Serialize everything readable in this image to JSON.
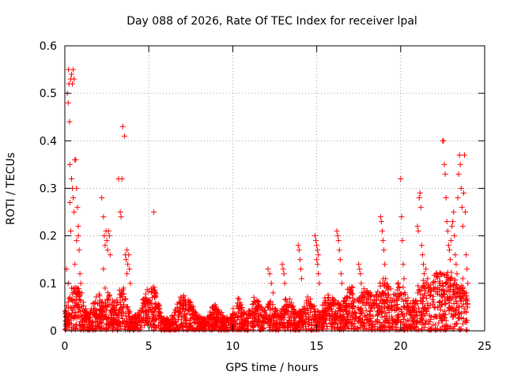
{
  "chart_data": {
    "type": "scatter",
    "title": "Day 088 of 2026, Rate Of TEC Index for receiver lpal",
    "xlabel": "GPS time / hours",
    "ylabel": "ROTI / TECUs",
    "xlim": [
      0,
      25
    ],
    "ylim": [
      0,
      0.6
    ],
    "grid": true,
    "marker": "+",
    "series_color": "#ff0000",
    "xticks": [
      0,
      5,
      10,
      15,
      20,
      25
    ],
    "xtick_labels": [
      "0",
      "5",
      "10",
      "15",
      "20",
      "25"
    ],
    "yticks": [
      0,
      0.1,
      0.2,
      0.3,
      0.4,
      0.5,
      0.6
    ],
    "ytick_labels": [
      "0",
      "0.1",
      "0.2",
      "0.3",
      "0.4",
      "0.5",
      "0.6"
    ],
    "series": [
      {
        "name": "ROTI",
        "points": [
          [
            0.05,
            0.01
          ],
          [
            0.1,
            0.13
          ],
          [
            0.15,
            0.5
          ],
          [
            0.2,
            0.48
          ],
          [
            0.22,
            0.55
          ],
          [
            0.25,
            0.52
          ],
          [
            0.28,
            0.44
          ],
          [
            0.3,
            0.35
          ],
          [
            0.35,
            0.53
          ],
          [
            0.4,
            0.54
          ],
          [
            0.45,
            0.52
          ],
          [
            0.5,
            0.55
          ],
          [
            0.55,
            0.53
          ],
          [
            0.3,
            0.27
          ],
          [
            0.35,
            0.21
          ],
          [
            0.4,
            0.32
          ],
          [
            0.45,
            0.3
          ],
          [
            0.5,
            0.28
          ],
          [
            0.55,
            0.25
          ],
          [
            0.6,
            0.36
          ],
          [
            0.65,
            0.36
          ],
          [
            0.7,
            0.3
          ],
          [
            0.75,
            0.26
          ],
          [
            0.8,
            0.2
          ],
          [
            0.85,
            0.17
          ],
          [
            0.9,
            0.12
          ],
          [
            0.95,
            0.1
          ],
          [
            1.0,
            0.08
          ],
          [
            0.2,
            0.1
          ],
          [
            0.3,
            0.07
          ],
          [
            0.4,
            0.09
          ],
          [
            0.6,
            0.14
          ],
          [
            0.7,
            0.19
          ],
          [
            0.8,
            0.22
          ],
          [
            1.1,
            0.06
          ],
          [
            2.2,
            0.28
          ],
          [
            2.3,
            0.24
          ],
          [
            2.35,
            0.2
          ],
          [
            2.4,
            0.18
          ],
          [
            2.45,
            0.21
          ],
          [
            2.5,
            0.19
          ],
          [
            2.55,
            0.17
          ],
          [
            2.6,
            0.21
          ],
          [
            2.65,
            0.2
          ],
          [
            2.7,
            0.16
          ],
          [
            2.3,
            0.13
          ],
          [
            2.4,
            0.09
          ],
          [
            3.2,
            0.32
          ],
          [
            3.3,
            0.25
          ],
          [
            3.35,
            0.24
          ],
          [
            3.4,
            0.32
          ],
          [
            3.45,
            0.43
          ],
          [
            3.55,
            0.41
          ],
          [
            3.6,
            0.16
          ],
          [
            3.65,
            0.15
          ],
          [
            3.7,
            0.17
          ],
          [
            3.75,
            0.14
          ],
          [
            3.8,
            0.16
          ],
          [
            3.85,
            0.13
          ],
          [
            3.9,
            0.1
          ],
          [
            3.7,
            0.12
          ],
          [
            3.5,
            0.09
          ],
          [
            3.3,
            0.07
          ],
          [
            5.3,
            0.25
          ],
          [
            5.1,
            0.06
          ],
          [
            5.2,
            0.07
          ],
          [
            5.4,
            0.05
          ],
          [
            12.1,
            0.13
          ],
          [
            12.2,
            0.12
          ],
          [
            12.3,
            0.1
          ],
          [
            12.4,
            0.08
          ],
          [
            12.95,
            0.14
          ],
          [
            13.0,
            0.13
          ],
          [
            13.05,
            0.12
          ],
          [
            13.1,
            0.1
          ],
          [
            13.9,
            0.18
          ],
          [
            13.95,
            0.17
          ],
          [
            14.0,
            0.15
          ],
          [
            14.05,
            0.13
          ],
          [
            14.1,
            0.11
          ],
          [
            14.9,
            0.2
          ],
          [
            14.95,
            0.19
          ],
          [
            15.0,
            0.18
          ],
          [
            15.05,
            0.17
          ],
          [
            15.1,
            0.16
          ],
          [
            15.0,
            0.15
          ],
          [
            15.05,
            0.14
          ],
          [
            15.1,
            0.12
          ],
          [
            15.15,
            0.1
          ],
          [
            16.2,
            0.21
          ],
          [
            16.25,
            0.2
          ],
          [
            16.3,
            0.19
          ],
          [
            16.35,
            0.17
          ],
          [
            16.4,
            0.15
          ],
          [
            16.45,
            0.12
          ],
          [
            16.5,
            0.1
          ],
          [
            17.5,
            0.14
          ],
          [
            17.55,
            0.13
          ],
          [
            17.6,
            0.12
          ],
          [
            17.65,
            0.1
          ],
          [
            17.7,
            0.08
          ],
          [
            18.8,
            0.24
          ],
          [
            18.85,
            0.23
          ],
          [
            18.9,
            0.21
          ],
          [
            18.95,
            0.19
          ],
          [
            19.0,
            0.17
          ],
          [
            19.05,
            0.14
          ],
          [
            19.1,
            0.11
          ],
          [
            19.15,
            0.09
          ],
          [
            20.0,
            0.32
          ],
          [
            20.05,
            0.24
          ],
          [
            20.1,
            0.19
          ],
          [
            20.15,
            0.14
          ],
          [
            20.2,
            0.11
          ],
          [
            21.0,
            0.22
          ],
          [
            21.05,
            0.21
          ],
          [
            21.1,
            0.28
          ],
          [
            21.15,
            0.29
          ],
          [
            21.2,
            0.26
          ],
          [
            21.25,
            0.18
          ],
          [
            21.3,
            0.16
          ],
          [
            21.35,
            0.14
          ],
          [
            21.4,
            0.12
          ],
          [
            21.45,
            0.1
          ],
          [
            21.5,
            0.13
          ],
          [
            21.6,
            0.11
          ],
          [
            21.7,
            0.09
          ],
          [
            22.5,
            0.4
          ],
          [
            22.55,
            0.4
          ],
          [
            22.6,
            0.35
          ],
          [
            22.65,
            0.33
          ],
          [
            22.7,
            0.28
          ],
          [
            22.75,
            0.23
          ],
          [
            22.8,
            0.21
          ],
          [
            22.85,
            0.18
          ],
          [
            22.9,
            0.17
          ],
          [
            22.95,
            0.15
          ],
          [
            23.0,
            0.19
          ],
          [
            23.05,
            0.22
          ],
          [
            23.1,
            0.23
          ],
          [
            23.15,
            0.25
          ],
          [
            23.2,
            0.2
          ],
          [
            23.25,
            0.16
          ],
          [
            23.3,
            0.14
          ],
          [
            23.35,
            0.12
          ],
          [
            23.4,
            0.28
          ],
          [
            23.45,
            0.33
          ],
          [
            23.5,
            0.37
          ],
          [
            23.55,
            0.35
          ],
          [
            23.6,
            0.3
          ],
          [
            23.65,
            0.26
          ],
          [
            23.7,
            0.22
          ],
          [
            23.75,
            0.29
          ],
          [
            23.8,
            0.37
          ],
          [
            23.85,
            0.25
          ],
          [
            23.9,
            0.16
          ],
          [
            23.95,
            0.13
          ],
          [
            24.0,
            0.1
          ],
          [
            22.4,
            0.12
          ],
          [
            22.3,
            0.1
          ],
          [
            22.2,
            0.09
          ],
          [
            23.0,
            0.11
          ],
          [
            23.2,
            0.1
          ],
          [
            23.5,
            0.09
          ],
          [
            23.7,
            0.11
          ],
          [
            23.9,
            0.08
          ]
        ],
        "baseline_bumps": [
          {
            "center": 0.6,
            "width": 0.6,
            "height": 0.08
          },
          {
            "center": 1.9,
            "width": 0.35,
            "height": 0.06
          },
          {
            "center": 2.6,
            "width": 0.35,
            "height": 0.06
          },
          {
            "center": 3.4,
            "width": 0.4,
            "height": 0.07
          },
          {
            "center": 4.8,
            "width": 0.5,
            "height": 0.05
          },
          {
            "center": 5.3,
            "width": 0.4,
            "height": 0.06
          },
          {
            "center": 6.9,
            "width": 0.5,
            "height": 0.04
          },
          {
            "center": 7.5,
            "width": 0.5,
            "height": 0.035
          },
          {
            "center": 9.0,
            "width": 0.5,
            "height": 0.035
          },
          {
            "center": 10.3,
            "width": 0.35,
            "height": 0.05
          },
          {
            "center": 11.3,
            "width": 0.4,
            "height": 0.05
          },
          {
            "center": 12.2,
            "width": 0.45,
            "height": 0.05
          },
          {
            "center": 13.3,
            "width": 0.45,
            "height": 0.05
          },
          {
            "center": 14.5,
            "width": 0.5,
            "height": 0.05
          },
          {
            "center": 15.8,
            "width": 0.6,
            "height": 0.06
          },
          {
            "center": 17.0,
            "width": 0.5,
            "height": 0.07
          },
          {
            "center": 18.0,
            "width": 0.5,
            "height": 0.07
          },
          {
            "center": 19.0,
            "width": 0.5,
            "height": 0.09
          },
          {
            "center": 20.0,
            "width": 0.5,
            "height": 0.08
          },
          {
            "center": 21.3,
            "width": 0.6,
            "height": 0.09
          },
          {
            "center": 22.2,
            "width": 0.5,
            "height": 0.08
          },
          {
            "center": 23.0,
            "width": 0.6,
            "height": 0.1
          },
          {
            "center": 23.8,
            "width": 0.3,
            "height": 0.06
          }
        ]
      }
    ]
  }
}
